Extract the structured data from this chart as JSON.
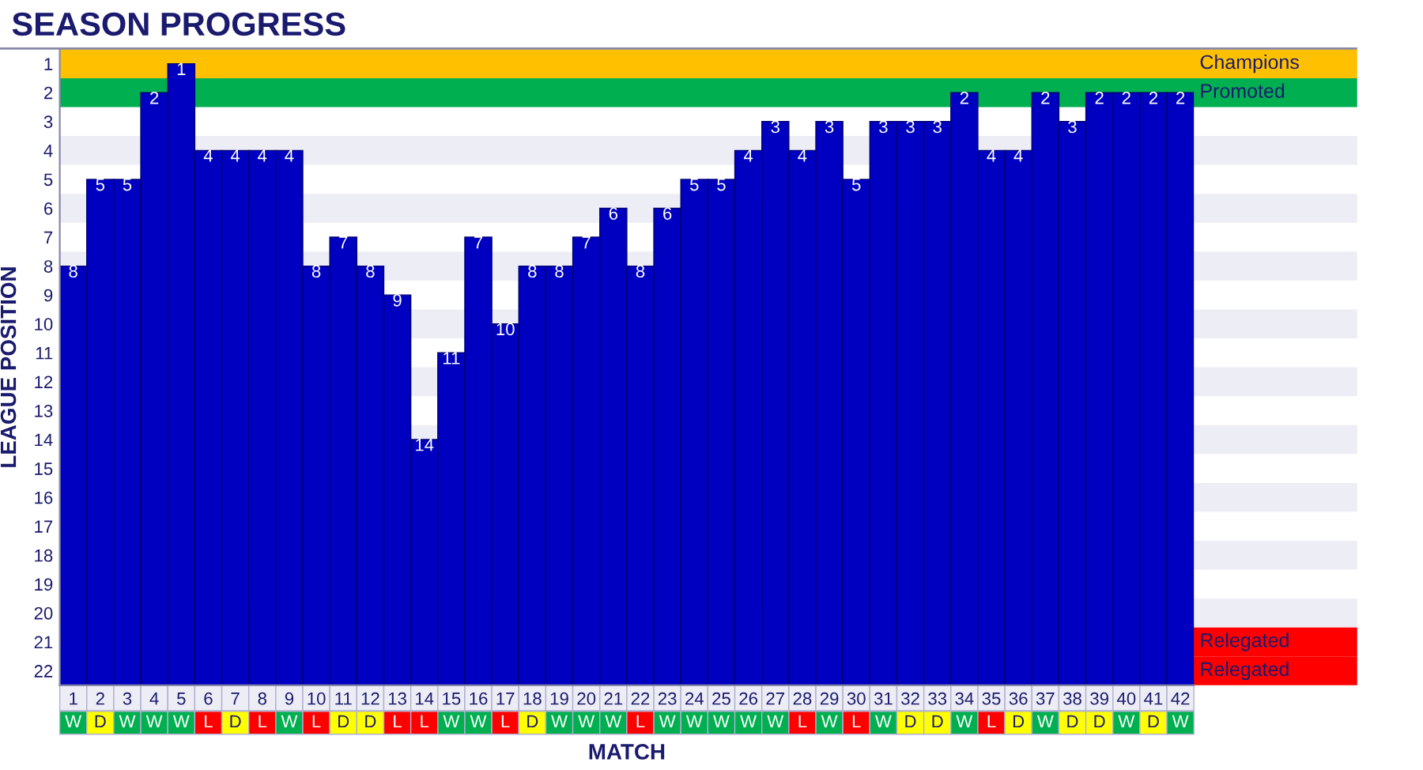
{
  "chart_data": {
    "type": "bar",
    "title": "SEASON PROGRESS",
    "xlabel": "MATCH",
    "ylabel": "LEAGUE POSITION",
    "categories": [
      "1",
      "2",
      "3",
      "4",
      "5",
      "6",
      "7",
      "8",
      "9",
      "10",
      "11",
      "12",
      "13",
      "14",
      "15",
      "16",
      "17",
      "18",
      "19",
      "20",
      "21",
      "22",
      "23",
      "24",
      "25",
      "26",
      "27",
      "28",
      "29",
      "30",
      "31",
      "32",
      "33",
      "34",
      "35",
      "36",
      "37",
      "38",
      "39",
      "40",
      "41",
      "42"
    ],
    "base": [
      22.5,
      22.5,
      22.5,
      22.5,
      22.5,
      22.5,
      22.5,
      22.5,
      22.5,
      22.5,
      22.5,
      22.5,
      22.5,
      22.5,
      22.5,
      22.5,
      22.5,
      22.5,
      22.5,
      22.5,
      22.5,
      22.5,
      22.5,
      22.5,
      22.5,
      22.5,
      22.5,
      22.5,
      22.5,
      22.5,
      22.5,
      22.5,
      22.5,
      22.5,
      22.5,
      22.5,
      22.5,
      22.5,
      22.5,
      22.5,
      22.5,
      22.5
    ],
    "values": [
      -14.5,
      -17.5,
      -17.5,
      -20.5,
      -21.5,
      -18.5,
      -18.5,
      -18.5,
      -18.5,
      -14.5,
      -15.5,
      -14.5,
      -13.5,
      -8.5,
      -11.5,
      -15.5,
      -12.5,
      -14.5,
      -14.5,
      -15.5,
      -16.5,
      -14.5,
      -16.5,
      -17.5,
      -17.5,
      -18.5,
      -19.5,
      -18.5,
      -19.5,
      -17.5,
      -19.5,
      -19.5,
      -19.5,
      -20.5,
      -18.5,
      -18.5,
      -20.5,
      -19.5,
      -20.5,
      -20.5,
      -20.5,
      -20.5
    ],
    "value_labels": [
      "8",
      "5",
      "5",
      "2",
      "1",
      "4",
      "4",
      "4",
      "4",
      "8",
      "7",
      "8",
      "9",
      "14",
      "11",
      "7",
      "10",
      "8",
      "8",
      "7",
      "6",
      "8",
      "6",
      "5",
      "5",
      "4",
      "3",
      "4",
      "3",
      "5",
      "3",
      "3",
      "3",
      "2",
      "4",
      "4",
      "2",
      "3",
      "2",
      "2",
      "2",
      "2"
    ],
    "color": "#0000c0",
    "ylim": [
      22.5,
      0.5
    ],
    "yticks": [
      1,
      2,
      3,
      4,
      5,
      6,
      7,
      8,
      9,
      10,
      11,
      12,
      13,
      14,
      15,
      16,
      17,
      18,
      19,
      20,
      21,
      22
    ],
    "grid": false,
    "legend": false,
    "bands": [
      {
        "axis": "y",
        "from": 0.5,
        "to": 1.5,
        "label": "Champions",
        "color": "#ffc000"
      },
      {
        "axis": "y",
        "from": 1.5,
        "to": 2.5,
        "label": "Promoted",
        "color": "#00b050"
      },
      {
        "axis": "y",
        "from": 3.5,
        "to": 4.5,
        "color": "#ededf6"
      },
      {
        "axis": "y",
        "from": 5.5,
        "to": 6.5,
        "color": "#ededf6"
      },
      {
        "axis": "y",
        "from": 7.5,
        "to": 8.5,
        "color": "#ededf6"
      },
      {
        "axis": "y",
        "from": 9.5,
        "to": 10.5,
        "color": "#ededf6"
      },
      {
        "axis": "y",
        "from": 11.5,
        "to": 12.5,
        "color": "#ededf6"
      },
      {
        "axis": "y",
        "from": 13.5,
        "to": 14.5,
        "color": "#ededf6"
      },
      {
        "axis": "y",
        "from": 15.5,
        "to": 16.5,
        "color": "#ededf6"
      },
      {
        "axis": "y",
        "from": 17.5,
        "to": 18.5,
        "color": "#ededf6"
      },
      {
        "axis": "y",
        "from": 19.5,
        "to": 20.5,
        "color": "#ededf6"
      },
      {
        "axis": "y",
        "from": 20.5,
        "to": 21.5,
        "label": "Relegated",
        "color": "#ff0000"
      },
      {
        "axis": "y",
        "from": 21.5,
        "to": 22.5,
        "label": "Relegated",
        "color": "#ff0000"
      }
    ],
    "annotations": [
      "W",
      "D",
      "W",
      "W",
      "W",
      "L",
      "D",
      "L",
      "W",
      "L",
      "D",
      "D",
      "L",
      "L",
      "W",
      "W",
      "L",
      "D",
      "W",
      "W",
      "W",
      "L",
      "W",
      "W",
      "W",
      "W",
      "W",
      "L",
      "W",
      "L",
      "W",
      "D",
      "D",
      "W",
      "L",
      "D",
      "W",
      "D",
      "D",
      "W",
      "D",
      "W"
    ]
  }
}
